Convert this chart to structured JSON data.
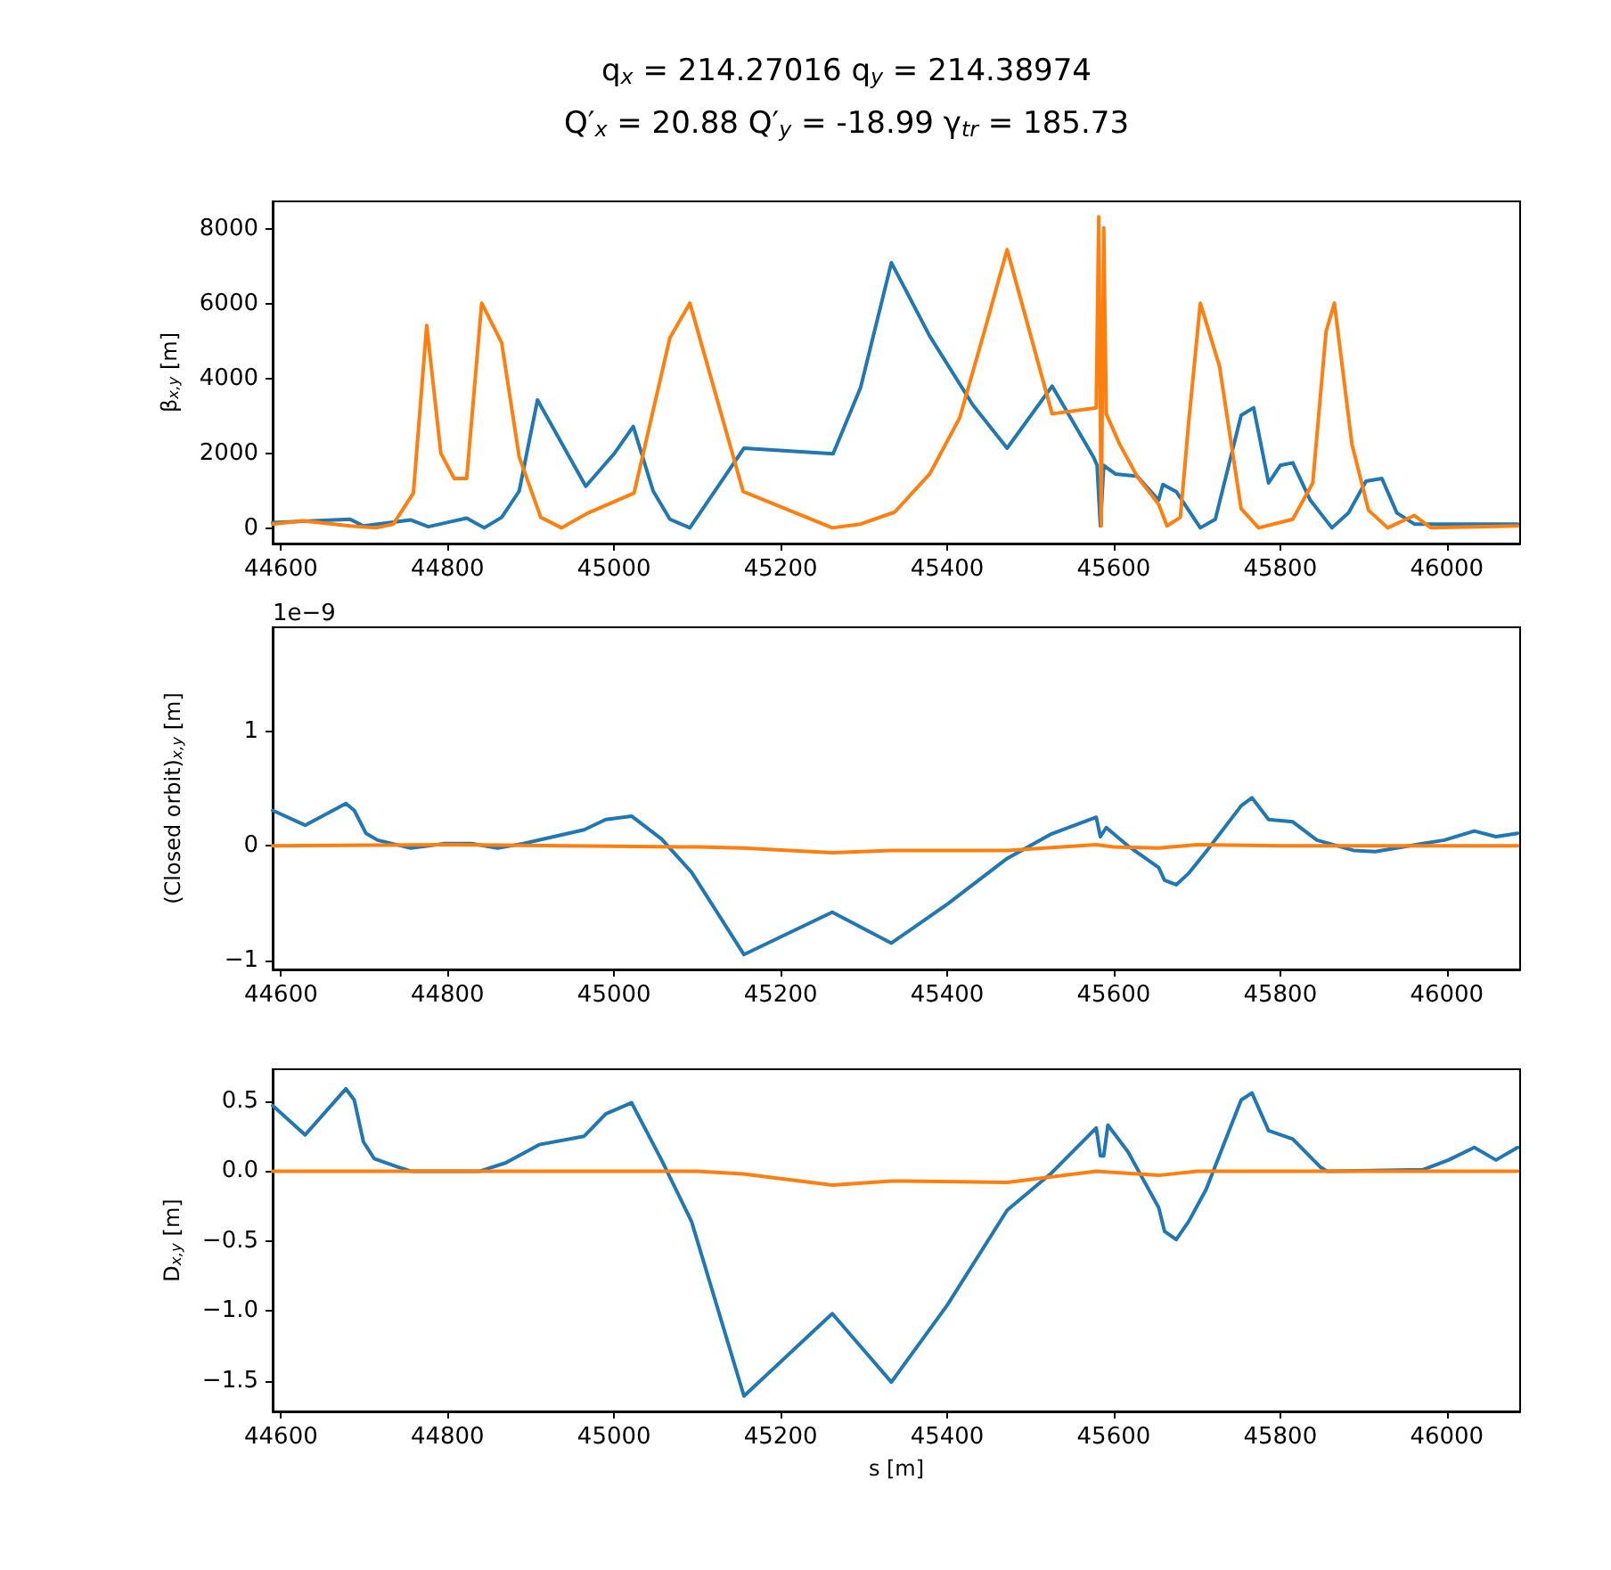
{
  "chart_data": [
    {
      "type": "line",
      "title": "q$_{x}$ = 214.27016 q$_{y}$ = 214.38974",
      "subtitle": "Q′$_{x}$ = 20.88 Q′$_{y}$ = -18.99 γ$_{tr}$ = 185.73",
      "ylabel": "β$_{x,y}$ [m]",
      "xlim": [
        44590,
        46088
      ],
      "xticks": [
        44600,
        44800,
        45000,
        45200,
        45400,
        45600,
        45800,
        46000
      ],
      "ylim": [
        -400,
        8750
      ],
      "yticks": [
        0,
        2000,
        4000,
        6000,
        8000
      ],
      "series": [
        {
          "color": "#1f77b4",
          "x": [
            44590,
            44683,
            44699,
            44756,
            44777,
            44823,
            44844,
            44865,
            44886,
            44908,
            44966,
            45000,
            45023,
            45047,
            45067,
            45091,
            45156,
            45263,
            45296,
            45333,
            45379,
            45431,
            45472,
            45526,
            45576,
            45580,
            45584,
            45588,
            45602,
            45628,
            45654,
            45659,
            45675,
            45704,
            45722,
            45753,
            45768,
            45786,
            45800,
            45815,
            45836,
            45862,
            45882,
            45903,
            45922,
            45940,
            45961,
            46085
          ],
          "values": [
            160,
            250,
            70,
            230,
            50,
            280,
            20,
            300,
            1000,
            3440,
            1130,
            2000,
            2730,
            1000,
            250,
            20,
            2150,
            2000,
            3770,
            7110,
            5150,
            3300,
            2150,
            3810,
            1900,
            1690,
            70,
            1690,
            1460,
            1400,
            760,
            1180,
            990,
            20,
            250,
            3030,
            3230,
            1220,
            1690,
            1760,
            760,
            20,
            420,
            1270,
            1340,
            420,
            120,
            120
          ]
        },
        {
          "color": "#ff7f0e",
          "x": [
            44590,
            44626,
            44683,
            44714,
            44735,
            44759,
            44775,
            44792,
            44808,
            44823,
            44841,
            44865,
            44886,
            44912,
            44937,
            44969,
            45024,
            45067,
            45091,
            45155,
            45262,
            45296,
            45337,
            45379,
            45415,
            45446,
            45472,
            45526,
            45579,
            45582,
            45585,
            45588,
            45591,
            45607,
            45628,
            45654,
            45664,
            45680,
            45690,
            45704,
            45727,
            45753,
            45774,
            45815,
            45839,
            45855,
            45865,
            45886,
            45906,
            45929,
            45961,
            45981,
            46085
          ],
          "values": [
            120,
            210,
            70,
            20,
            120,
            950,
            5430,
            2010,
            1340,
            1340,
            6030,
            4970,
            1920,
            300,
            20,
            420,
            950,
            5100,
            6030,
            990,
            20,
            120,
            440,
            1460,
            2960,
            5380,
            7460,
            3070,
            3230,
            8340,
            70,
            8040,
            3070,
            2260,
            1400,
            650,
            70,
            300,
            2840,
            6030,
            4340,
            530,
            20,
            250,
            1220,
            5270,
            6030,
            2260,
            490,
            20,
            350,
            20,
            70
          ]
        }
      ]
    },
    {
      "type": "line",
      "ylabel": "(Closed orbit)$_{x,y}$ [m]",
      "annotations": [
        "1e−9"
      ],
      "xlim": [
        44590,
        46088
      ],
      "xticks": [
        44600,
        44800,
        45000,
        45200,
        45400,
        45600,
        45800,
        46000
      ],
      "ylim": [
        -1.08,
        1.91
      ],
      "yticks": [
        {
          "value": -1,
          "label": "−1"
        },
        0,
        1
      ],
      "series": [
        {
          "color": "#1f77b4",
          "x": [
            44590,
            44629,
            44678,
            44688,
            44702,
            44716,
            44756,
            44797,
            44829,
            44860,
            44891,
            44964,
            44990,
            45021,
            45057,
            45093,
            45156,
            45262,
            45333,
            45400,
            45472,
            45524,
            45579,
            45584,
            45591,
            45617,
            45654,
            45661,
            45675,
            45690,
            45711,
            45753,
            45766,
            45786,
            45815,
            45844,
            45888,
            45914,
            45971,
            45997,
            46033,
            46059,
            46085
          ],
          "values": [
            0.31,
            0.18,
            0.37,
            0.31,
            0.11,
            0.05,
            -0.02,
            0.02,
            0.02,
            -0.02,
            0.02,
            0.14,
            0.23,
            0.26,
            0.06,
            -0.23,
            -0.95,
            -0.58,
            -0.85,
            -0.51,
            -0.11,
            0.1,
            0.25,
            0.08,
            0.16,
            0,
            -0.19,
            -0.3,
            -0.34,
            -0.24,
            -0.05,
            0.35,
            0.42,
            0.23,
            0.21,
            0.05,
            -0.04,
            -0.05,
            0.02,
            0.05,
            0.13,
            0.08,
            0.11
          ]
        },
        {
          "color": "#ff7f0e",
          "x": [
            44590,
            44800,
            45100,
            45155,
            45262,
            45333,
            45472,
            45579,
            45600,
            45654,
            45700,
            45800,
            46085
          ],
          "values": [
            0,
            0.01,
            -0.01,
            -0.02,
            -0.06,
            -0.04,
            -0.04,
            0.01,
            -0.01,
            -0.02,
            0.01,
            0,
            0
          ]
        }
      ]
    },
    {
      "type": "line",
      "xlabel": "s [m]",
      "ylabel": "D$_{x,y}$ [m]",
      "xlim": [
        44590,
        46088
      ],
      "xticks": [
        44600,
        44800,
        45000,
        45200,
        45400,
        45600,
        45800,
        46000
      ],
      "ylim": [
        -1.72,
        0.73
      ],
      "yticks": [
        {
          "value": -1.5,
          "label": "−1.5"
        },
        {
          "value": -1,
          "label": "−1.0"
        },
        {
          "value": -0.5,
          "label": "−0.5"
        },
        {
          "value": 0,
          "label": "0.0"
        },
        {
          "value": 0.5,
          "label": "0.5"
        }
      ],
      "series": [
        {
          "color": "#1f77b4",
          "x": [
            44590,
            44629,
            44678,
            44688,
            44699,
            44712,
            44740,
            44756,
            44839,
            44870,
            44910,
            44964,
            44990,
            45021,
            45057,
            45093,
            45156,
            45262,
            45333,
            45400,
            45472,
            45524,
            45579,
            45584,
            45588,
            45593,
            45617,
            45654,
            45661,
            45675,
            45690,
            45711,
            45753,
            45766,
            45786,
            45815,
            45848,
            45856,
            45971,
            46002,
            46033,
            46059,
            46085
          ],
          "values": [
            0.47,
            0.26,
            0.59,
            0.51,
            0.21,
            0.09,
            0.03,
            0,
            0,
            0.06,
            0.19,
            0.25,
            0.41,
            0.49,
            0.08,
            -0.36,
            -1.61,
            -1.02,
            -1.51,
            -0.96,
            -0.28,
            -0.02,
            0.31,
            0.11,
            0.11,
            0.33,
            0.14,
            -0.26,
            -0.43,
            -0.49,
            -0.36,
            -0.13,
            0.51,
            0.56,
            0.29,
            0.23,
            0.03,
            0,
            0.01,
            0.08,
            0.17,
            0.08,
            0.17
          ]
        },
        {
          "color": "#ff7f0e",
          "x": [
            44590,
            45100,
            45155,
            45262,
            45333,
            45472,
            45579,
            45654,
            45700,
            46085
          ],
          "values": [
            0,
            0,
            -0.02,
            -0.1,
            -0.07,
            -0.08,
            0,
            -0.03,
            0,
            0
          ]
        }
      ]
    }
  ]
}
